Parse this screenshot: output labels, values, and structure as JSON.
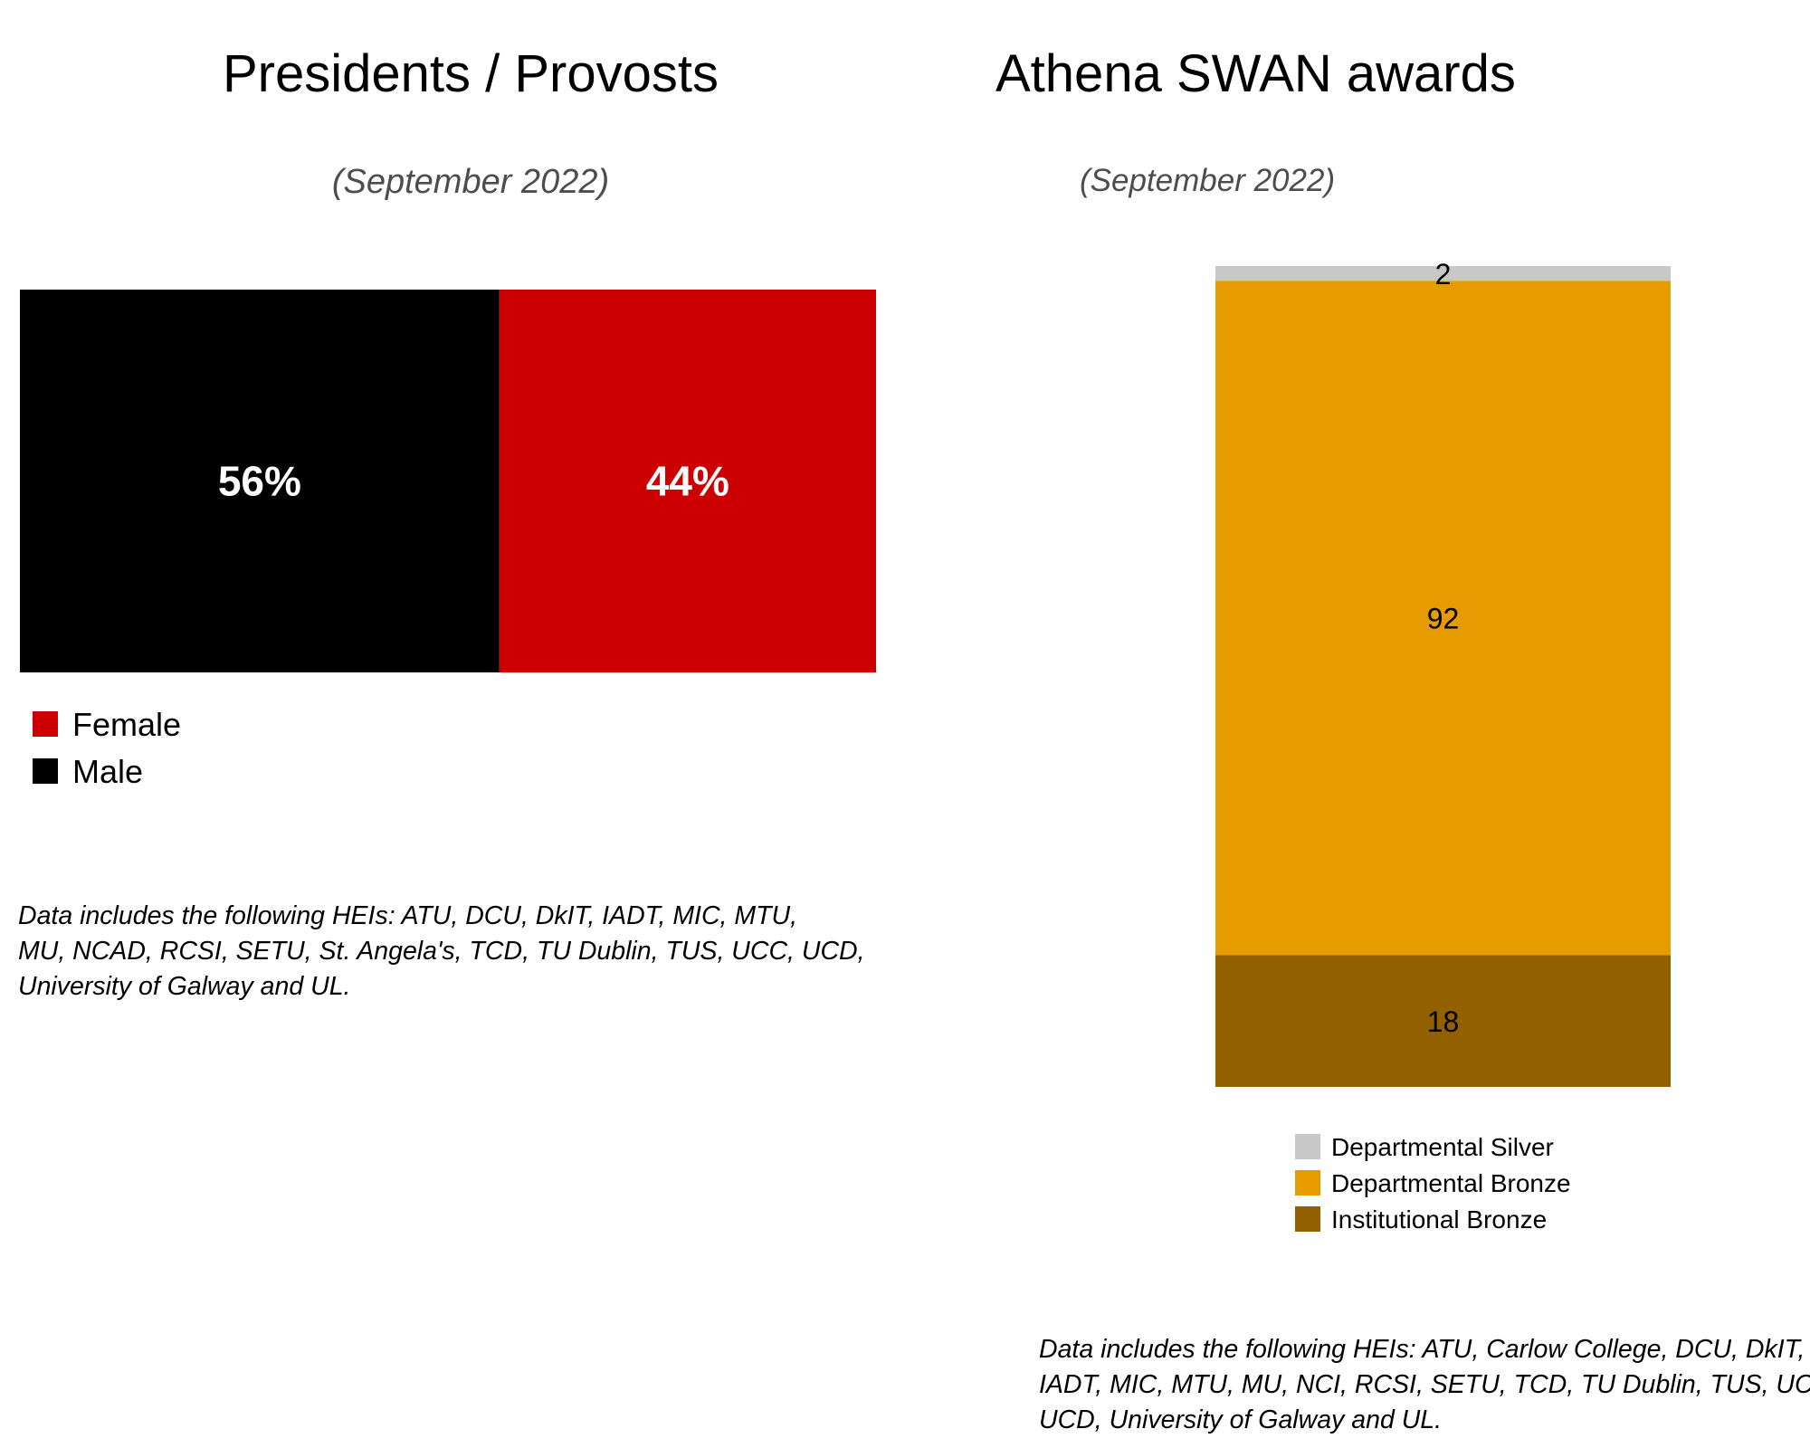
{
  "chart_data": [
    {
      "type": "bar",
      "title": "Presidents / Provosts",
      "subtitle": "(September 2022)",
      "orientation": "horizontal-stacked-100",
      "series": [
        {
          "name": "Male",
          "value": 56,
          "label": "56%",
          "color": "#000000"
        },
        {
          "name": "Female",
          "value": 44,
          "label": "44%",
          "color": "#cc0000"
        }
      ],
      "legend": {
        "placement": "bottom-left",
        "entries": [
          {
            "name": "Female",
            "color": "#cc0000"
          },
          {
            "name": "Male",
            "color": "#000000"
          }
        ]
      },
      "note_lines": [
        "Data includes the following HEIs: ATU, DCU, DkIT, IADT, MIC, MTU,",
        "MU, NCAD, RCSI, SETU, St. Angela's,  TCD, TU Dublin, TUS, UCC, UCD,",
        "University of Galway and UL."
      ]
    },
    {
      "type": "bar",
      "title": "Athena SWAN awards",
      "subtitle": "(September 2022)",
      "orientation": "vertical-stacked",
      "series": [
        {
          "name": "Institutional Bronze",
          "value": 18,
          "label": "18",
          "color": "#936000"
        },
        {
          "name": "Departmental Bronze",
          "value": 92,
          "label": "92",
          "color": "#e69c00"
        },
        {
          "name": "Departmental Silver",
          "value": 2,
          "label": "2",
          "color": "#c8c8c8"
        }
      ],
      "legend": {
        "placement": "bottom",
        "entries": [
          {
            "name": "Departmental Silver",
            "color": "#c8c8c8"
          },
          {
            "name": "Departmental Bronze",
            "color": "#e69c00"
          },
          {
            "name": "Institutional Bronze",
            "color": "#936000"
          }
        ]
      },
      "note_lines": [
        "Data includes the following HEIs: ATU, Carlow College, DCU, DkIT,",
        "IADT, MIC, MTU, MU, NCI, RCSI, SETU, TCD, TU Dublin, TUS, UCC,",
        "UCD, University of Galway and UL."
      ]
    }
  ]
}
